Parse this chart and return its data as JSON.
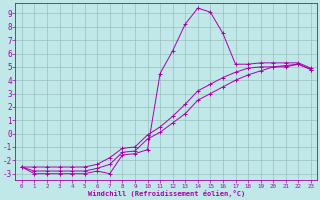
{
  "xlabel": "Windchill (Refroidissement éolien,°C)",
  "bg_color": "#c0e8e8",
  "line_color": "#aa00aa",
  "grid_color": "#9bbfbf",
  "xlim": [
    -0.5,
    23.5
  ],
  "ylim": [
    -3.5,
    9.8
  ],
  "xticks": [
    0,
    1,
    2,
    3,
    4,
    5,
    6,
    7,
    8,
    9,
    10,
    11,
    12,
    13,
    14,
    15,
    16,
    17,
    18,
    19,
    20,
    21,
    22,
    23
  ],
  "yticks": [
    -3,
    -2,
    -1,
    0,
    1,
    2,
    3,
    4,
    5,
    6,
    7,
    8,
    9
  ],
  "series1_x": [
    0,
    1,
    2,
    3,
    4,
    5,
    6,
    7,
    8,
    9,
    10,
    11,
    12,
    13,
    14,
    15,
    16,
    17,
    18,
    19,
    20,
    21,
    22,
    23
  ],
  "series1_y": [
    -2.5,
    -3.0,
    -3.0,
    -3.0,
    -3.0,
    -3.0,
    -2.8,
    -3.0,
    -1.6,
    -1.5,
    -1.2,
    4.5,
    6.2,
    8.2,
    9.4,
    9.1,
    7.5,
    5.2,
    5.2,
    5.3,
    5.3,
    5.3,
    5.3,
    4.9
  ],
  "series2_x": [
    0,
    1,
    2,
    3,
    4,
    5,
    6,
    7,
    8,
    9,
    10,
    11,
    12,
    13,
    14,
    15,
    16,
    17,
    18,
    19,
    20,
    21,
    22,
    23
  ],
  "series2_y": [
    -2.5,
    -2.8,
    -2.8,
    -2.8,
    -2.8,
    -2.8,
    -2.6,
    -2.3,
    -1.4,
    -1.3,
    -0.4,
    0.1,
    0.8,
    1.5,
    2.5,
    3.0,
    3.5,
    4.0,
    4.4,
    4.7,
    5.0,
    5.0,
    5.2,
    4.8
  ],
  "series3_x": [
    0,
    1,
    2,
    3,
    4,
    5,
    6,
    7,
    8,
    9,
    10,
    11,
    12,
    13,
    14,
    15,
    16,
    17,
    18,
    19,
    20,
    21,
    22,
    23
  ],
  "series3_y": [
    -2.5,
    -2.5,
    -2.5,
    -2.5,
    -2.5,
    -2.5,
    -2.3,
    -1.8,
    -1.1,
    -1.0,
    -0.1,
    0.5,
    1.3,
    2.2,
    3.2,
    3.7,
    4.2,
    4.6,
    4.9,
    5.0,
    5.0,
    5.1,
    5.2,
    4.8
  ]
}
